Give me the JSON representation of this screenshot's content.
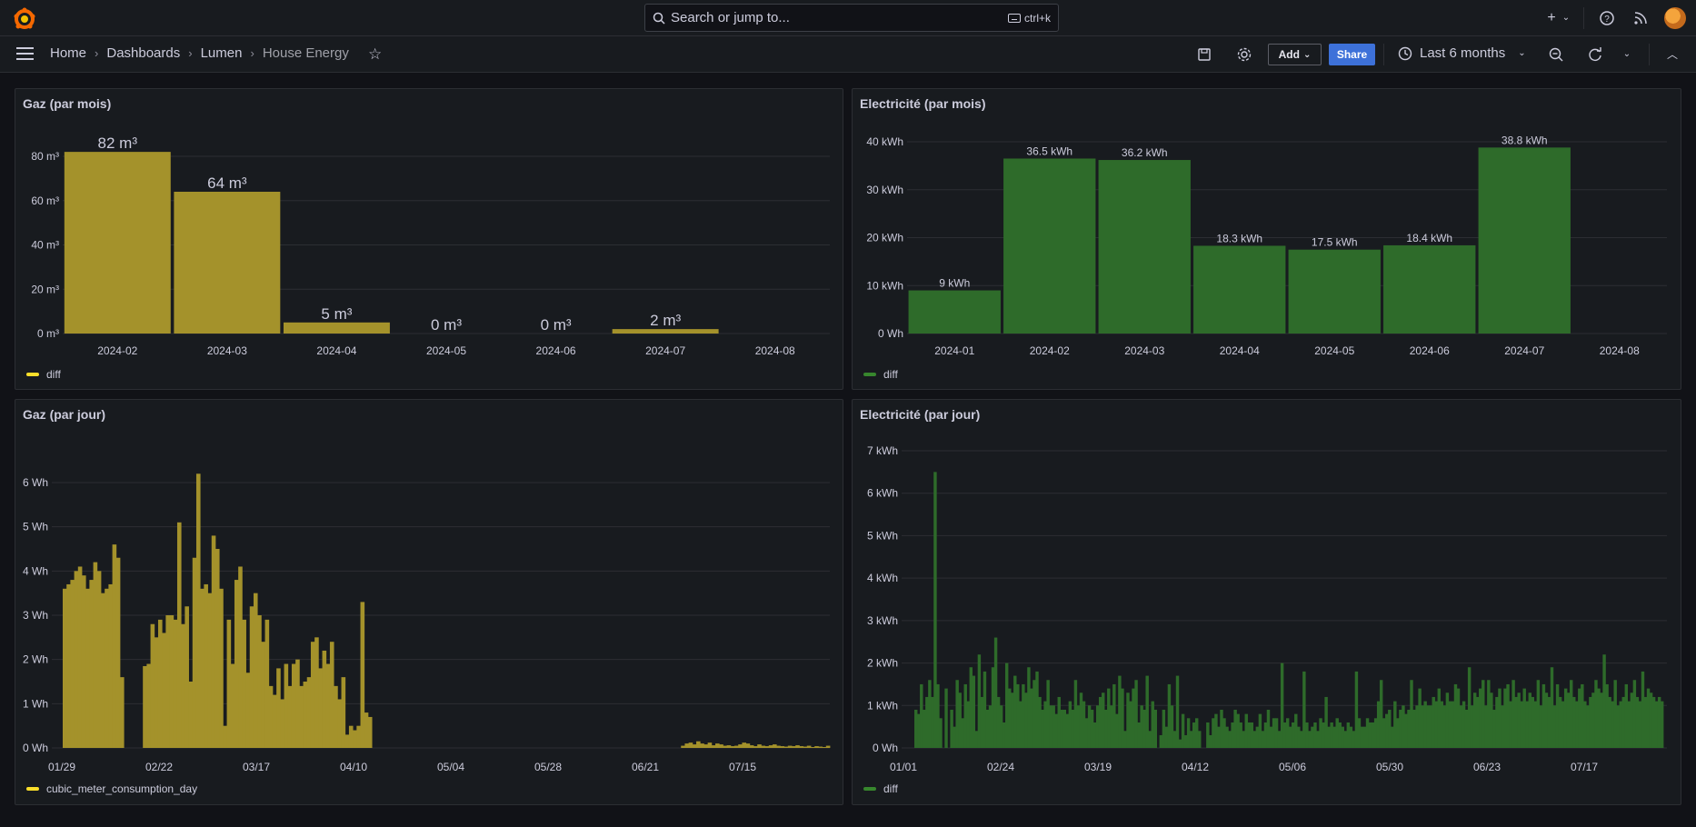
{
  "topbar": {
    "search_placeholder": "Search or jump to...",
    "search_shortcut": "ctrl+k",
    "icons": [
      "grafana-logo-icon",
      "plus-icon",
      "help-icon",
      "rss-icon",
      "user-avatar"
    ]
  },
  "breadcrumb": {
    "home": "Home",
    "dashboards": "Dashboards",
    "folder": "Lumen",
    "current": "House Energy"
  },
  "toolbar": {
    "add_label": "Add",
    "share_label": "Share",
    "time_range": "Last 6 months"
  },
  "colors": {
    "gas": "#a4922b",
    "gas_legend": "#fade2a",
    "elec": "#2e6b2a",
    "elec_legend": "#37872d",
    "accent": "#3d71d9",
    "bg": "#111217",
    "panel": "#181b1f"
  },
  "panels": {
    "gas_month": {
      "title": "Gaz (par mois)",
      "legend": "diff"
    },
    "elec_month": {
      "title": "Electricité (par mois)",
      "legend": "diff"
    },
    "gas_day": {
      "title": "Gaz (par jour)",
      "legend": "cubic_meter_consumption_day"
    },
    "elec_day": {
      "title": "Electricité (par jour)",
      "legend": "diff"
    }
  },
  "chart_data": [
    {
      "type": "bar",
      "title": "Gaz (par mois)",
      "categories": [
        "2024-02",
        "2024-03",
        "2024-04",
        "2024-05",
        "2024-06",
        "2024-07",
        "2024-08"
      ],
      "values": [
        82,
        64,
        5,
        0,
        0,
        2,
        null
      ],
      "value_labels": [
        "82 m³",
        "64 m³",
        "5 m³",
        "0 m³",
        "0 m³",
        "2 m³",
        ""
      ],
      "unit": "m³",
      "yticks": [
        "0 m³",
        "20 m³",
        "40 m³",
        "60 m³",
        "80 m³"
      ],
      "ylim": [
        0,
        90
      ],
      "grid": true,
      "legend_position": "bottom-left"
    },
    {
      "type": "bar",
      "title": "Electricité (par mois)",
      "categories": [
        "2024-01",
        "2024-02",
        "2024-03",
        "2024-04",
        "2024-05",
        "2024-06",
        "2024-07",
        "2024-08"
      ],
      "values": [
        9,
        36.5,
        36.2,
        18.3,
        17.5,
        18.4,
        38.8,
        null
      ],
      "value_labels": [
        "9 kWh",
        "36.5 kWh",
        "36.2 kWh",
        "18.3 kWh",
        "17.5 kWh",
        "18.4 kWh",
        "38.8 kWh",
        ""
      ],
      "unit": "kWh",
      "yticks": [
        "0 Wh",
        "10 kWh",
        "20 kWh",
        "30 kWh",
        "40 kWh"
      ],
      "ylim": [
        0,
        40
      ],
      "grid": true,
      "legend_position": "bottom-left"
    },
    {
      "type": "bar",
      "title": "Gaz (par jour)",
      "x_ticks": [
        "01/29",
        "02/22",
        "03/17",
        "04/10",
        "05/04",
        "05/28",
        "06/21",
        "07/15"
      ],
      "x_range_days": [
        0,
        199
      ],
      "yticks": [
        "0 Wh",
        "1 Wh",
        "2 Wh",
        "3 Wh",
        "4 Wh",
        "5 Wh",
        "6 Wh"
      ],
      "ylim": [
        0,
        6
      ],
      "values_wh": [
        3.6,
        3.7,
        3.8,
        4.0,
        4.1,
        3.9,
        3.6,
        3.8,
        4.2,
        4.0,
        3.5,
        3.6,
        3.7,
        4.6,
        4.3,
        1.6,
        0,
        0,
        0,
        0,
        0,
        1.85,
        1.9,
        2.8,
        2.5,
        2.9,
        2.6,
        3.0,
        3.0,
        2.9,
        5.1,
        2.8,
        3.2,
        1.5,
        4.3,
        6.2,
        3.6,
        3.7,
        3.5,
        4.8,
        4.5,
        3.6,
        0.5,
        2.9,
        1.9,
        3.8,
        4.1,
        2.9,
        1.7,
        3.2,
        3.5,
        3.0,
        2.4,
        2.9,
        1.4,
        1.2,
        1.8,
        1.1,
        1.9,
        1.4,
        1.9,
        2.0,
        1.4,
        1.5,
        1.6,
        2.4,
        2.5,
        1.8,
        2.2,
        1.9,
        2.4,
        1.4,
        1.1,
        1.6,
        0.3,
        0.5,
        0.4,
        0.5,
        3.3,
        0.8,
        0.7,
        0,
        0,
        0,
        0,
        0,
        0,
        0,
        0,
        0,
        0,
        0,
        0,
        0,
        0,
        0,
        0,
        0,
        0,
        0,
        0,
        0,
        0,
        0,
        0,
        0,
        0,
        0,
        0,
        0,
        0,
        0,
        0,
        0,
        0,
        0,
        0,
        0,
        0,
        0,
        0,
        0,
        0,
        0,
        0,
        0,
        0,
        0,
        0,
        0,
        0,
        0,
        0,
        0,
        0,
        0,
        0,
        0,
        0,
        0,
        0,
        0,
        0,
        0,
        0,
        0,
        0,
        0,
        0,
        0,
        0,
        0,
        0,
        0,
        0,
        0,
        0,
        0,
        0,
        0,
        0,
        0,
        0.05,
        0.1,
        0.12,
        0.08,
        0.15,
        0.1,
        0.08,
        0.12,
        0.06,
        0.1,
        0.08,
        0.05,
        0.06,
        0.04,
        0.05,
        0.08,
        0.12,
        0.1,
        0.06,
        0.04,
        0.08,
        0.05,
        0.04,
        0.06,
        0.08,
        0.05,
        0.04,
        0.03,
        0.05,
        0.04,
        0.06,
        0.04,
        0.03,
        0.05,
        0.02,
        0.04,
        0.03,
        0.02,
        0.05
      ],
      "grid": true,
      "legend_position": "bottom-left"
    },
    {
      "type": "bar",
      "title": "Electricité (par jour)",
      "x_ticks": [
        "01/01",
        "02/24",
        "03/19",
        "04/12",
        "05/06",
        "05/30",
        "06/23",
        "07/17"
      ],
      "yticks": [
        "0 Wh",
        "1 kWh",
        "2 kWh",
        "3 kWh",
        "4 kWh",
        "5 kWh",
        "6 kWh",
        "7 kWh"
      ],
      "ylim": [
        0,
        7
      ],
      "values_kwh": [
        0.9,
        0.8,
        1.5,
        0.9,
        1.2,
        1.6,
        1.2,
        6.5,
        1.5,
        0.7,
        0,
        1.4,
        0,
        0.9,
        0.5,
        1.6,
        1.3,
        0.7,
        1.5,
        1.1,
        1.9,
        1.7,
        0.4,
        2.2,
        1.2,
        1.8,
        0.9,
        1.0,
        1.9,
        2.6,
        1.2,
        1.0,
        0.6,
        2.0,
        1.4,
        1.3,
        1.7,
        1.5,
        1.1,
        1.5,
        1.3,
        1.9,
        1.4,
        1.6,
        1.8,
        1.2,
        0.9,
        1.1,
        1.6,
        1.0,
        1.0,
        0.8,
        1.2,
        0.9,
        0.9,
        0.8,
        1.1,
        0.9,
        1.6,
        1.0,
        1.3,
        1.1,
        0.7,
        1.0,
        0.9,
        0.6,
        1.0,
        1.2,
        1.3,
        0.9,
        1.4,
        1.0,
        1.5,
        0.8,
        1.7,
        1.4,
        0.4,
        1.3,
        1.1,
        1.4,
        1.6,
        0.6,
        1.0,
        0.9,
        1.7,
        0.4,
        1.1,
        0.9,
        0,
        0.3,
        0.9,
        0.5,
        1.5,
        1.0,
        0.4,
        1.7,
        0.2,
        0.8,
        0.3,
        0.7,
        0.4,
        0.6,
        0.7,
        0.4,
        0,
        0,
        0.6,
        0.3,
        0.7,
        0.8,
        0.5,
        0.9,
        0.7,
        0.5,
        0.4,
        0.6,
        0.9,
        0.8,
        0.6,
        0.4,
        0.8,
        0.6,
        0.6,
        0.4,
        0.5,
        0.8,
        0.4,
        0.6,
        0.9,
        0.5,
        0.7,
        0.7,
        0.4,
        2.0,
        0.6,
        0.7,
        0.5,
        0.6,
        0.8,
        0.5,
        0.4,
        1.8,
        0.6,
        0.4,
        0.5,
        0.6,
        0.4,
        0.7,
        0.6,
        1.2,
        0.5,
        0.6,
        0.5,
        0.7,
        0.6,
        0.5,
        0.4,
        0.6,
        0.5,
        0.4,
        1.8,
        0.7,
        0.5,
        0.5,
        0.7,
        0.6,
        0.6,
        0.7,
        1.1,
        1.6,
        0.7,
        0.8,
        0.9,
        0.5,
        1.1,
        0.7,
        0.9,
        1.0,
        0.8,
        0.9,
        1.6,
        0.9,
        1.0,
        1.4,
        1.0,
        1.1,
        1.0,
        1.0,
        1.2,
        1.1,
        1.4,
        1.1,
        1.0,
        1.3,
        1.1,
        1.1,
        1.5,
        1.4,
        1.0,
        1.1,
        0.9,
        1.9,
        1.0,
        1.3,
        1.2,
        1.4,
        1.6,
        1.0,
        1.6,
        1.3,
        0.9,
        1.2,
        1.4,
        1.0,
        1.4,
        1.5,
        1.1,
        1.6,
        1.2,
        1.3,
        1.1,
        1.4,
        1.1,
        1.3,
        1.2,
        1.1,
        1.6,
        1.0,
        1.5,
        1.3,
        1.2,
        1.9,
        1.0,
        1.5,
        1.2,
        1.1,
        1.4,
        1.3,
        1.6,
        1.2,
        1.1,
        1.4,
        1.5,
        1.1,
        1.0,
        1.2,
        1.3,
        1.6,
        1.4,
        1.3,
        2.2,
        1.5,
        1.2,
        1.1,
        1.6,
        1.0,
        1.1,
        1.2,
        1.5,
        1.1,
        1.3,
        1.6,
        1.2,
        1.1,
        1.8,
        1.2,
        1.4,
        1.3,
        1.2,
        1.1,
        1.2,
        1.1
      ],
      "grid": true,
      "legend_position": "bottom-left"
    }
  ]
}
